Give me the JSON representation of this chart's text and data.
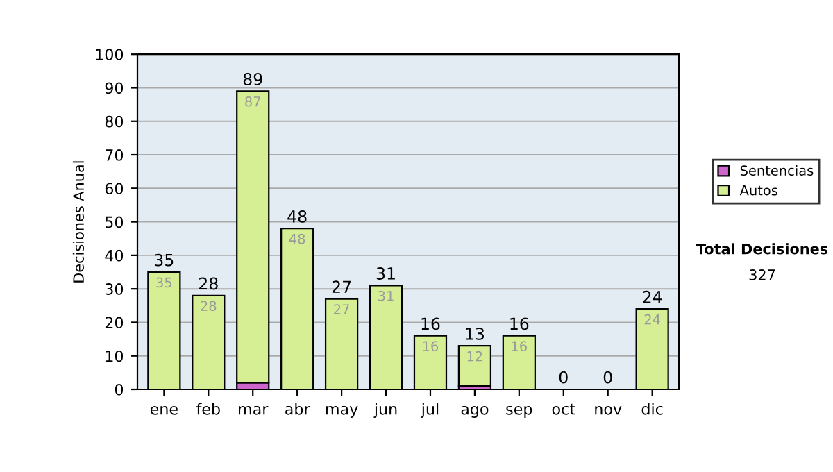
{
  "chart_data": {
    "type": "bar",
    "ylabel": "Decisiones Anual",
    "categories": [
      "ene",
      "feb",
      "mar",
      "abr",
      "may",
      "jun",
      "jul",
      "ago",
      "sep",
      "oct",
      "nov",
      "dic"
    ],
    "stacked": true,
    "series": [
      {
        "name": "Sentencias",
        "color": "#cc66cc",
        "values": [
          0,
          0,
          2,
          0,
          0,
          0,
          0,
          1,
          0,
          0,
          0,
          0
        ]
      },
      {
        "name": "Autos",
        "color": "#d6ee94",
        "values": [
          35,
          28,
          87,
          48,
          27,
          31,
          16,
          12,
          16,
          0,
          0,
          24
        ],
        "value_labels": [
          "35",
          "28",
          "87",
          "48",
          "27",
          "31",
          "16",
          "12",
          "16",
          null,
          null,
          "24"
        ]
      }
    ],
    "totals": [
      "35",
      "28",
      "89",
      "48",
      "27",
      "31",
      "16",
      "13",
      "16",
      "0",
      "0",
      "24"
    ],
    "ylim": [
      0,
      100
    ],
    "yticks": [
      0,
      10,
      20,
      30,
      40,
      50,
      60,
      70,
      80,
      90,
      100
    ],
    "grid": "y",
    "legend": "right",
    "annotations": [
      "Total Decisiones",
      "327"
    ]
  }
}
